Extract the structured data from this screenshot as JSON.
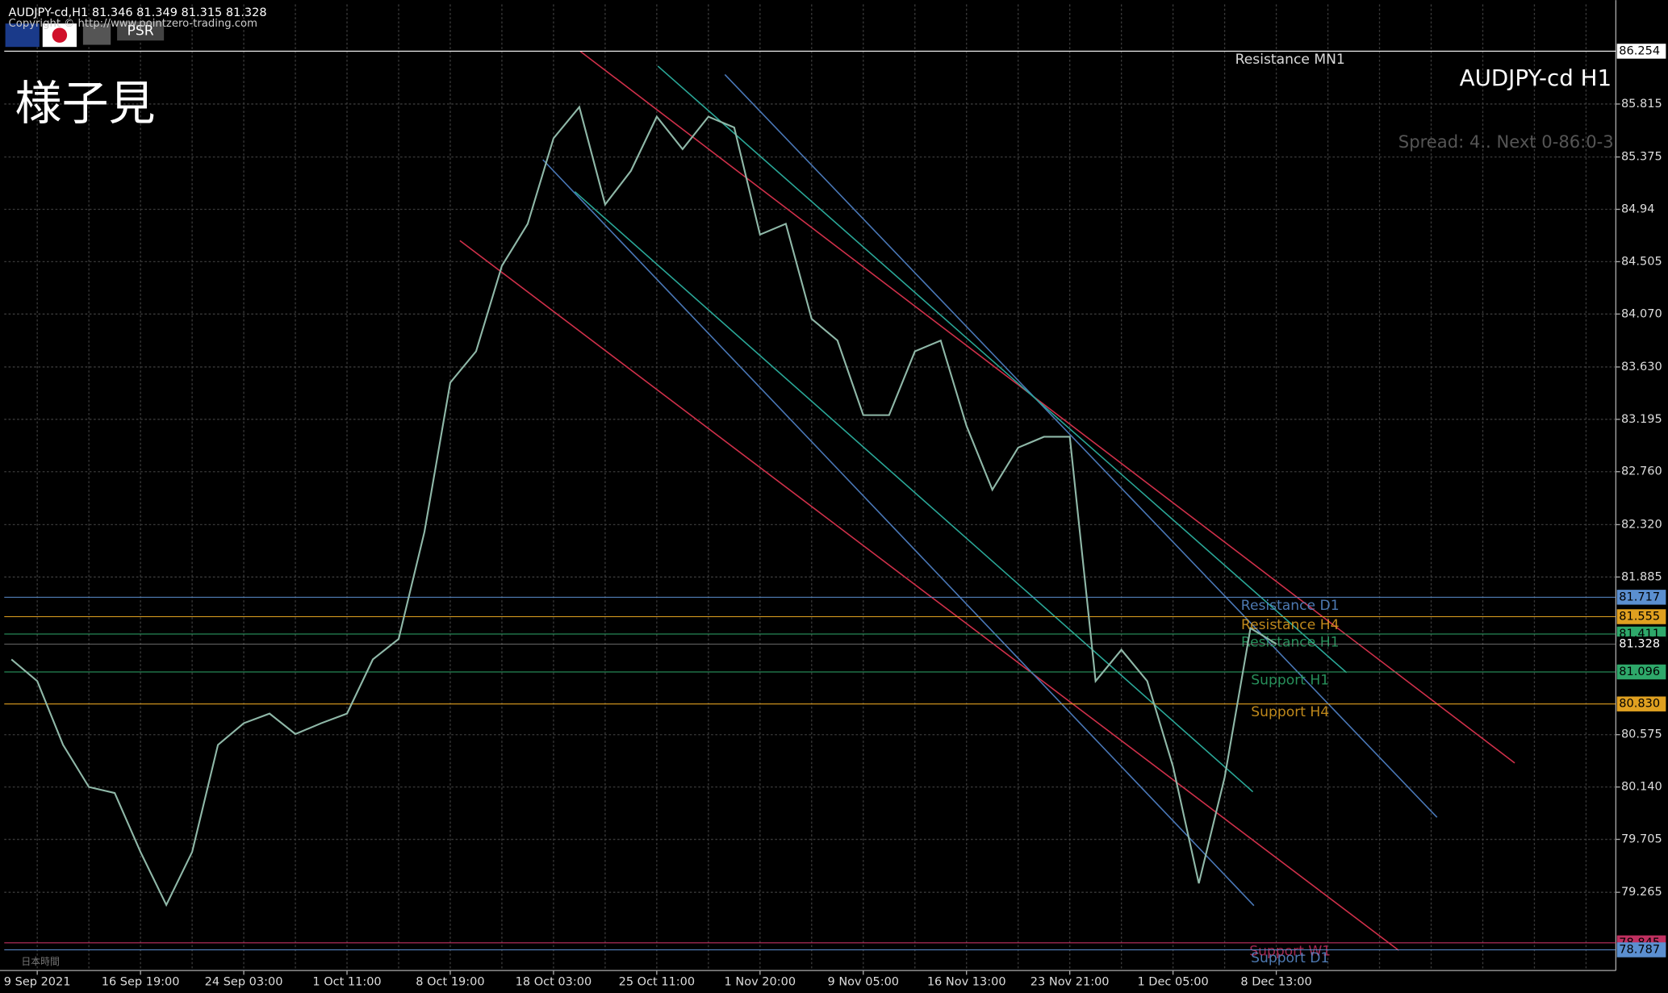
{
  "chart_data": {
    "type": "line",
    "header": "AUDJPY-cd,H1  81.346 81.349 81.315 81.328",
    "copyright": "Copyright © http://www.pointzero-trading.com",
    "button": "PSR",
    "timezone": "日本時間",
    "annotation": "様子見",
    "title": "AUDJPY-cd H1",
    "spread": "Spread: 4.. Next 0-86:0-3",
    "categories": [
      null,
      "9 Sep 2021",
      null,
      null,
      null,
      "16 Sep 19:00",
      null,
      null,
      null,
      "24 Sep 03:00",
      null,
      null,
      null,
      "1 Oct 11:00",
      null,
      null,
      null,
      "8 Oct 19:00",
      null,
      null,
      null,
      "18 Oct 03:00",
      null,
      null,
      null,
      "25 Oct 11:00",
      null,
      null,
      null,
      "1 Nov 20:00",
      null,
      null,
      null,
      "9 Nov 05:00",
      null,
      null,
      null,
      "16 Nov 13:00",
      null,
      null,
      null,
      "23 Nov 21:00",
      null,
      null,
      null,
      "1 Dec 05:00",
      null,
      null,
      null,
      "8 Dec 13:00"
    ],
    "series": [
      {
        "name": "AUDJPY-cd",
        "color": "#8fb8a8",
        "values": [
          81.2,
          81.02,
          80.49,
          80.14,
          80.09,
          79.6,
          79.16,
          79.6,
          80.49,
          80.67,
          80.75,
          80.58,
          80.67,
          80.75,
          81.2,
          81.37,
          82.26,
          83.5,
          83.76,
          84.47,
          84.82,
          85.53,
          85.79,
          84.98,
          85.26,
          85.71,
          85.44,
          85.71,
          85.62,
          84.73,
          84.82,
          84.03,
          83.85,
          83.23,
          83.23,
          83.76,
          83.85,
          83.14,
          82.61,
          82.96,
          83.05,
          83.05,
          81.02,
          81.28,
          81.02,
          80.31,
          79.34,
          80.22,
          81.46,
          81.33
        ]
      }
    ],
    "ylim": [
      78.615,
      86.643
    ],
    "yticks": [
      85.815,
      85.375,
      84.94,
      84.505,
      {
        "value": 84.07,
        "label": "84.070"
      },
      {
        "value": 83.63,
        "label": "83.630"
      },
      83.195,
      {
        "value": 82.76,
        "label": "82.760"
      },
      {
        "value": 82.32,
        "label": "82.320"
      },
      81.885,
      80.575,
      {
        "value": 80.14,
        "label": "80.140"
      },
      79.705,
      79.265
    ],
    "grid": true,
    "current_price": 81.328,
    "levels": [
      {
        "name": "Resistance MN1",
        "value": 86.254,
        "color": "#ffffff"
      },
      {
        "name": "Resistance D1",
        "value": 81.717,
        "color": "#5b8fd0"
      },
      {
        "name": "Resistance H4",
        "value": 81.555,
        "color": "#e0a020"
      },
      {
        "name": "Resistance H1",
        "value": 81.411,
        "color": "#2ea86a"
      },
      {
        "name": "Support H1",
        "value": 81.096,
        "color": "#2ea86a"
      },
      {
        "name": "Support H4",
        "value": 80.83,
        "label": "80.830",
        "color": "#e0a020"
      },
      {
        "name": "Support W1",
        "value": 78.845,
        "color": "#c03060"
      },
      {
        "name": "Support D1",
        "value": 78.787,
        "color": "#5b8fd0"
      }
    ]
  }
}
